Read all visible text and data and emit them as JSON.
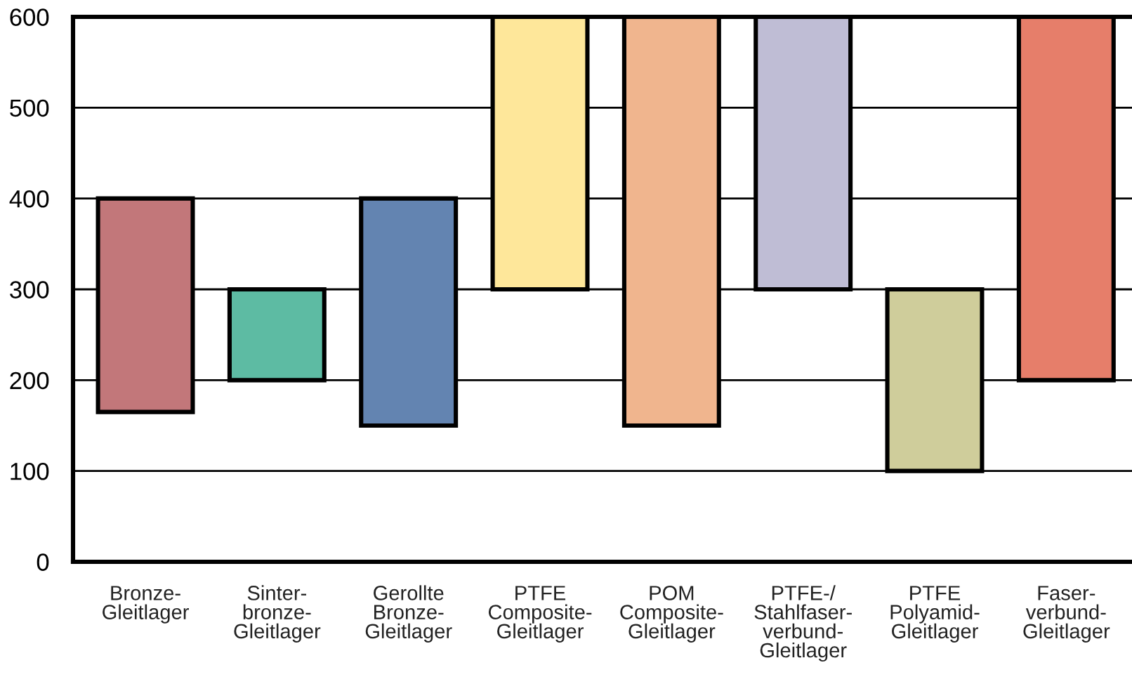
{
  "chart_data": {
    "type": "bar",
    "categories": [
      "Bronze-\nGleitlager",
      "Sinter-\nbronze-\nGleitlager",
      "Gerollte\nBronze-\nGleitlager",
      "PTFE\nComposite-\nGleitlager",
      "POM\nComposite-\nGleitlager",
      "PTFE-/\nStahlfaser-\nverbund-\nGleitlager",
      "PTFE\nPolyamid-\nGleitlager",
      "Faser-\nverbund-\nGleitlager"
    ],
    "base": [
      165,
      200,
      150,
      300,
      150,
      300,
      100,
      200
    ],
    "values": [
      235,
      100,
      250,
      300,
      450,
      300,
      200,
      400
    ],
    "colors": [
      "#c2777a",
      "#5dbba3",
      "#6384b1",
      "#fee79a",
      "#f0b58e",
      "#bfbdd5",
      "#cfcd9b",
      "#e67e6a"
    ],
    "ylim": [
      0,
      600
    ],
    "yticks": [
      0,
      100,
      200,
      300,
      400,
      500,
      600
    ],
    "grid": "y"
  }
}
